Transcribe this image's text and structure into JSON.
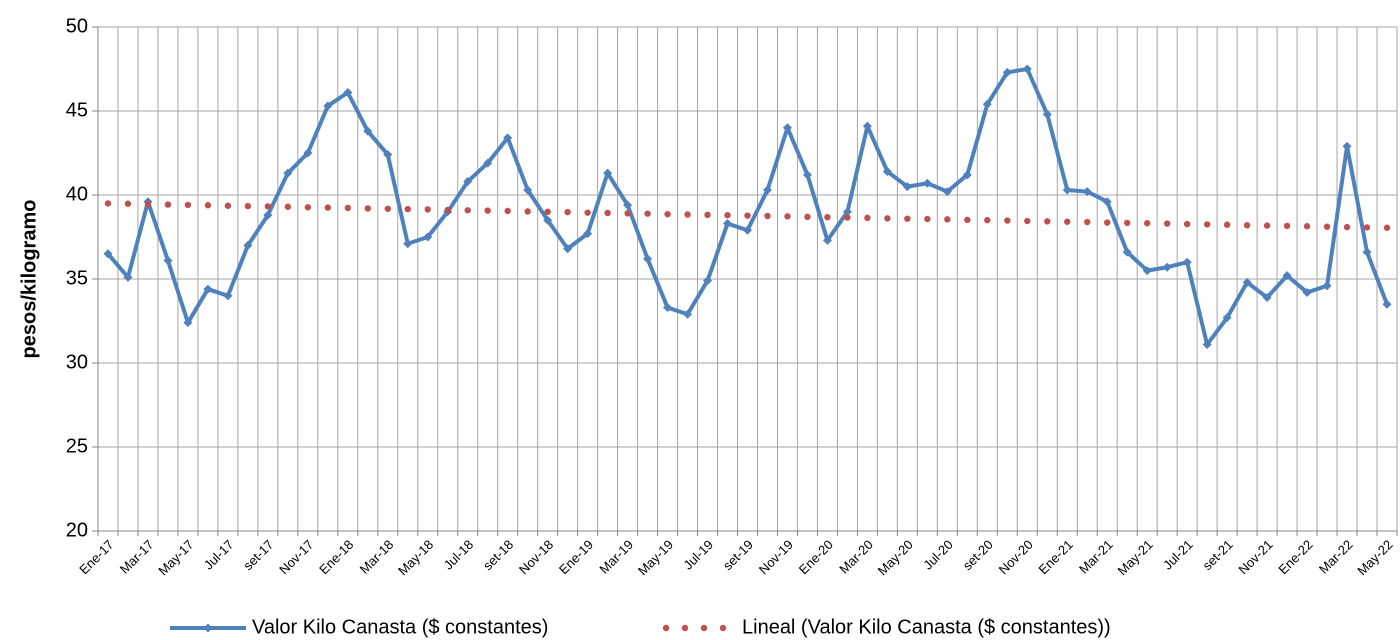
{
  "chart_data": {
    "type": "line",
    "y_label": "pesos/kilogramo",
    "categories": [
      "Ene-17",
      null,
      "Mar-17",
      null,
      "May-17",
      null,
      "Jul-17",
      null,
      "set-17",
      null,
      "Nov-17",
      null,
      "Ene-18",
      null,
      "Mar-18",
      null,
      "May-18",
      null,
      "Jul-18",
      null,
      "set-18",
      null,
      "Nov-18",
      null,
      "Ene-19",
      null,
      "Mar-19",
      null,
      "May-19",
      null,
      "Jul-19",
      null,
      "set-19",
      null,
      "Nov-19",
      null,
      "Ene-20",
      null,
      "Mar-20",
      null,
      "May-20",
      null,
      "Jul-20",
      null,
      "set-20",
      null,
      "Nov-20",
      null,
      "Ene-21",
      null,
      "Mar-21",
      null,
      "May-21",
      null,
      "Jul-21",
      null,
      "set-21",
      null,
      "Nov-21",
      null,
      "Ene-22",
      null,
      "Mar-22",
      null,
      "May-22"
    ],
    "series": [
      {
        "name": "Valor Kilo Canasta ($ constantes)",
        "color": "#4f81bd",
        "style": "line-markers",
        "values": [
          36.5,
          35.1,
          39.6,
          36.1,
          32.4,
          34.4,
          34.0,
          37.0,
          38.8,
          41.3,
          42.5,
          45.3,
          46.1,
          43.8,
          42.4,
          37.1,
          37.5,
          39.0,
          40.8,
          41.9,
          43.4,
          40.3,
          38.5,
          36.8,
          37.7,
          41.3,
          39.4,
          36.2,
          33.3,
          32.9,
          34.9,
          38.3,
          37.9,
          40.3,
          44.0,
          41.2,
          37.3,
          39.0,
          44.1,
          41.4,
          40.5,
          40.7,
          40.2,
          41.2,
          45.4,
          47.3,
          47.5,
          44.8,
          40.3,
          40.2,
          39.6,
          36.6,
          35.5,
          35.7,
          36.0,
          31.1,
          32.7,
          34.8,
          33.9,
          35.2,
          34.2,
          34.6,
          42.9,
          36.6,
          33.5
        ]
      },
      {
        "name": "Lineal (Valor Kilo Canasta ($ constantes))",
        "color": "#c0504d",
        "style": "dotted",
        "values": [
          39.5,
          39.48,
          39.45,
          39.43,
          39.41,
          39.39,
          39.36,
          39.34,
          39.32,
          39.3,
          39.27,
          39.25,
          39.23,
          39.2,
          39.18,
          39.16,
          39.14,
          39.11,
          39.09,
          39.07,
          39.05,
          39.02,
          39.0,
          38.98,
          38.95,
          38.93,
          38.91,
          38.89,
          38.86,
          38.84,
          38.82,
          38.8,
          38.77,
          38.75,
          38.73,
          38.7,
          38.68,
          38.66,
          38.64,
          38.61,
          38.59,
          38.57,
          38.55,
          38.52,
          38.5,
          38.48,
          38.45,
          38.43,
          38.41,
          38.39,
          38.36,
          38.34,
          38.32,
          38.3,
          38.27,
          38.25,
          38.23,
          38.2,
          38.18,
          38.16,
          38.14,
          38.11,
          38.09,
          38.07,
          38.05
        ]
      }
    ],
    "ylim": [
      20,
      50
    ],
    "yticks": [
      20,
      25,
      30,
      35,
      40,
      45,
      50
    ],
    "grid": true,
    "legend": "bottom"
  }
}
